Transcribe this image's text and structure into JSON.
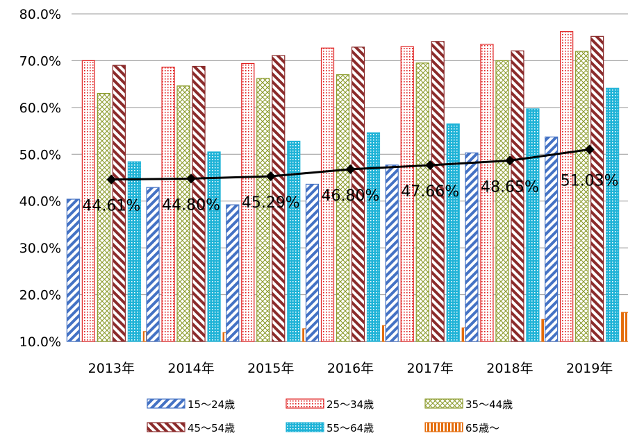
{
  "chart_data": {
    "type": "bar",
    "categories": [
      "2013年",
      "2014年",
      "2015年",
      "2016年",
      "2017年",
      "2018年",
      "2019年"
    ],
    "ylim": [
      0.1,
      0.8
    ],
    "yticks": [
      "10.0%",
      "20.0%",
      "30.0%",
      "40.0%",
      "50.0%",
      "60.0%",
      "70.0%",
      "80.0%"
    ],
    "ytick_values": [
      0.1,
      0.2,
      0.3,
      0.4,
      0.5,
      0.6,
      0.7,
      0.8
    ],
    "grid": true,
    "legend_position": "bottom",
    "series": [
      {
        "name": "15〜24歳",
        "values": [
          0.404,
          0.429,
          0.392,
          0.436,
          0.477,
          0.503,
          0.537
        ],
        "pattern": "diag-blue",
        "color": "#4472C4"
      },
      {
        "name": "25〜34歳",
        "values": [
          0.7,
          0.686,
          0.694,
          0.727,
          0.73,
          0.735,
          0.762
        ],
        "pattern": "dots-red",
        "color": "#E02020"
      },
      {
        "name": "35〜44歳",
        "values": [
          0.63,
          0.646,
          0.662,
          0.67,
          0.695,
          0.7,
          0.72
        ],
        "pattern": "grid-olive",
        "color": "#8A9A2A"
      },
      {
        "name": "45〜54歳",
        "values": [
          0.69,
          0.688,
          0.711,
          0.729,
          0.741,
          0.721,
          0.752
        ],
        "pattern": "diag-maroon",
        "color": "#8B2B2B"
      },
      {
        "name": "55〜64歳",
        "values": [
          0.484,
          0.505,
          0.528,
          0.546,
          0.565,
          0.597,
          0.641
        ],
        "pattern": "dots-cyan",
        "color": "#1FB3D7"
      },
      {
        "name": "65歳〜",
        "values": [
          0.121,
          0.119,
          0.127,
          0.134,
          0.129,
          0.147,
          0.162
        ],
        "pattern": "vert-orange",
        "color": "#E46C0A"
      }
    ],
    "line_series": {
      "values": [
        0.4461,
        0.448,
        0.4529,
        0.468,
        0.4766,
        0.4865,
        0.5103
      ],
      "labels": [
        "44.61%",
        "44.80%",
        "45.29%",
        "46.80%",
        "47.66%",
        "48.65%",
        "51.03%"
      ],
      "color": "#000000"
    }
  }
}
